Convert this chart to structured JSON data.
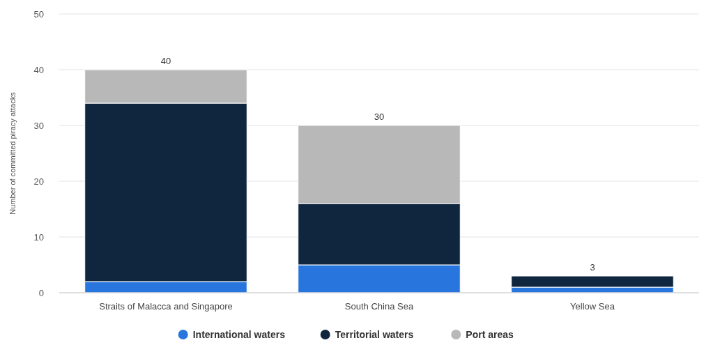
{
  "chart_data": {
    "type": "bar",
    "stacked": true,
    "ylabel": "Number of committed piracy attacks",
    "categories": [
      "Straits of Malacca and Singapore",
      "South China Sea",
      "Yellow Sea"
    ],
    "series": [
      {
        "name": "International waters",
        "color": "#2876dd",
        "values": [
          2,
          5,
          1
        ]
      },
      {
        "name": "Territorial waters",
        "color": "#10263e",
        "values": [
          32,
          11,
          2
        ]
      },
      {
        "name": "Port areas",
        "color": "#b8b8b8",
        "values": [
          6,
          14,
          0
        ]
      }
    ],
    "totals": [
      "40",
      "30",
      "3"
    ],
    "ylim": [
      0,
      50
    ],
    "yticks": [
      0,
      10,
      20,
      30,
      40,
      50
    ],
    "grid": "y",
    "legend": "bottom"
  }
}
